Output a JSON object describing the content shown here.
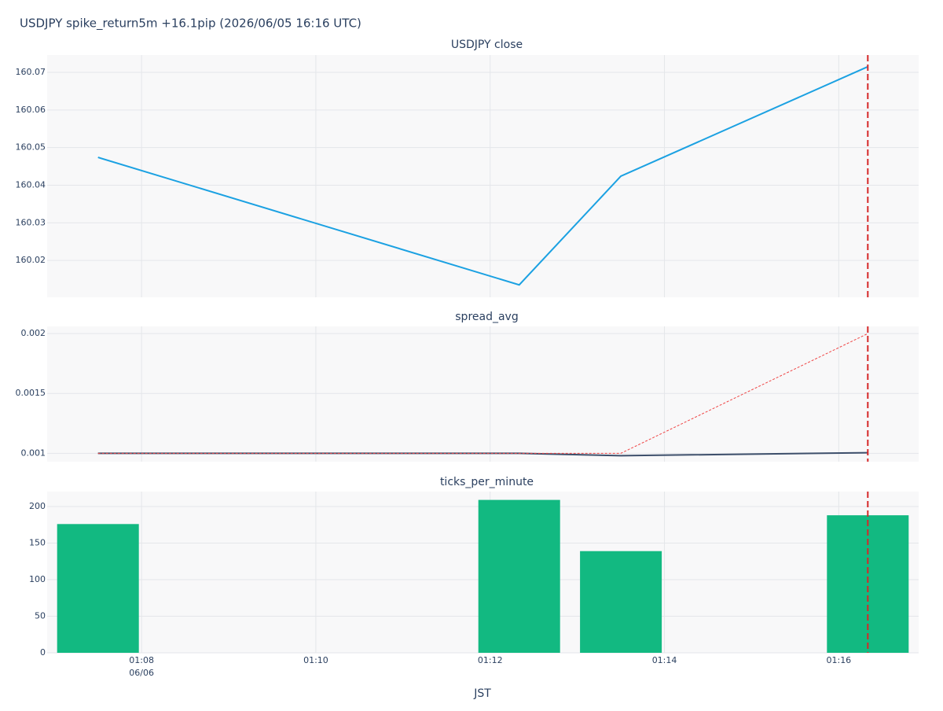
{
  "title": "USDJPY spike_return5m +16.1pip (2026/06/05 16:16 UTC)",
  "x_axis": {
    "label": "JST",
    "date_label": "06/06",
    "xlim": [
      "01:06:55",
      "01:16:55"
    ],
    "xticks": [
      "01:08",
      "01:10",
      "01:12",
      "01:14",
      "01:16"
    ],
    "marker_x": "01:16:20",
    "marker_color": "#d62728"
  },
  "chart_data": [
    {
      "type": "line",
      "title": "USDJPY close",
      "x": [
        "01:07:30",
        "01:12:20",
        "01:13:30",
        "01:16:20"
      ],
      "series": [
        {
          "color": "#1ba1e2",
          "dash": false,
          "values": [
            160.0474,
            160.0135,
            160.0424,
            160.0715
          ]
        }
      ],
      "ylim": [
        160.0102,
        160.0746
      ],
      "yticks": [
        160.02,
        160.03,
        160.04,
        160.05,
        160.06,
        160.07
      ],
      "grid": true
    },
    {
      "type": "line",
      "title": "spread_avg",
      "x": [
        "01:07:30",
        "01:12:20",
        "01:13:30",
        "01:16:20"
      ],
      "series": [
        {
          "color": "#3d4f6b",
          "dash": false,
          "values": [
            0.001,
            0.001,
            0.00098,
            0.001005
          ]
        },
        {
          "color": "#ef4444",
          "dash": true,
          "values": [
            0.001,
            0.001,
            0.001,
            0.002
          ]
        }
      ],
      "ylim": [
        0.00093,
        0.00206
      ],
      "yticks": [
        0.001,
        0.0015,
        0.002
      ],
      "grid": true
    },
    {
      "type": "bar",
      "title": "ticks_per_minute",
      "x": [
        "01:07:30",
        "01:12:20",
        "01:13:30",
        "01:16:20"
      ],
      "series": [
        {
          "color": "#12b981",
          "values": [
            176,
            209,
            139,
            188
          ]
        }
      ],
      "ylim": [
        0,
        220.4
      ],
      "yticks": [
        0,
        50,
        100,
        150,
        200
      ],
      "grid": true
    }
  ]
}
